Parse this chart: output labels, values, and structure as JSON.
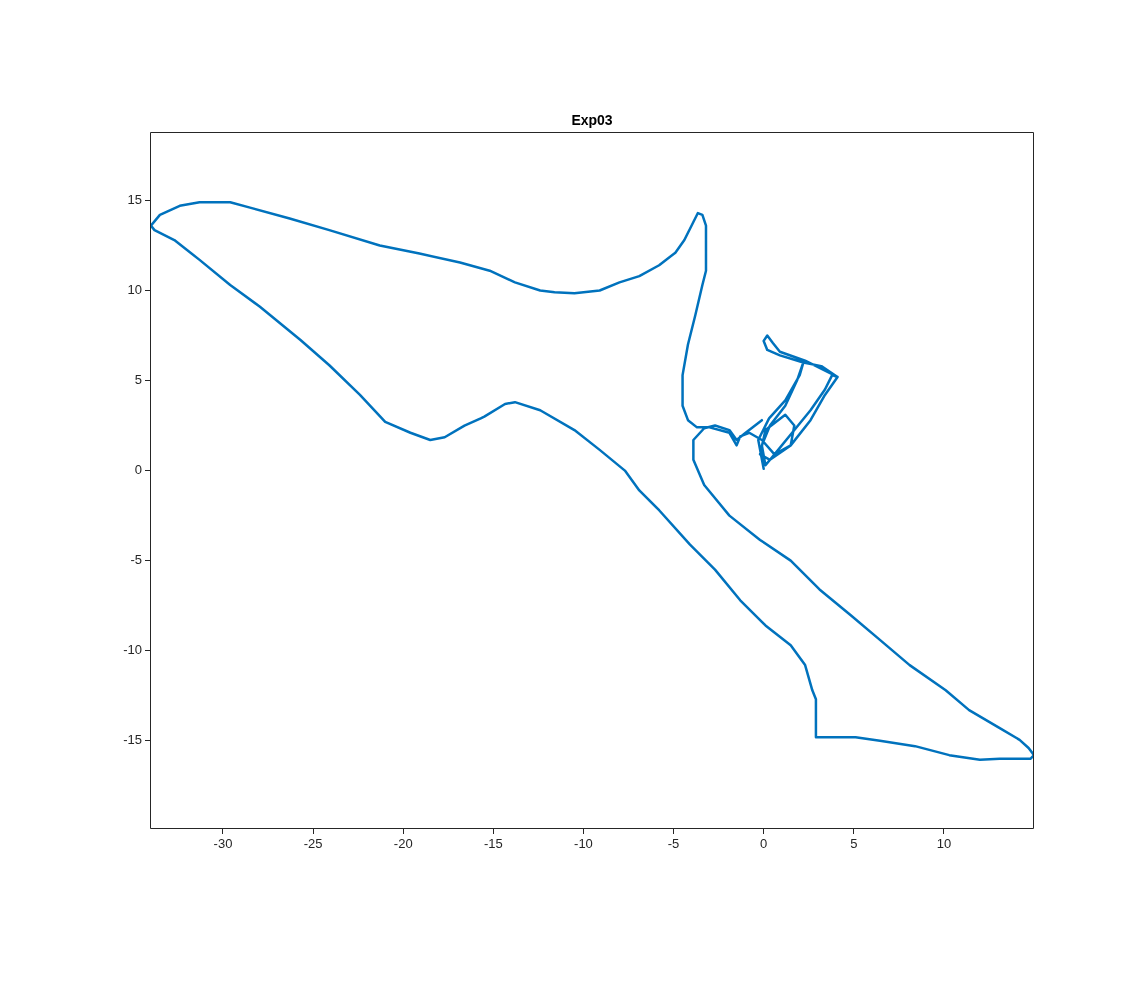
{
  "chart_data": {
    "type": "line",
    "title": "Exp03",
    "xlim": [
      -34.05,
      15
    ],
    "ylim": [
      -19.9,
      18.8
    ],
    "xticks": [
      -30,
      -25,
      -20,
      -15,
      -10,
      -5,
      0,
      5,
      10
    ],
    "yticks": [
      -15,
      -10,
      -5,
      0,
      5,
      10,
      15
    ],
    "grid": false,
    "legend": false,
    "marker": "none",
    "line_style": "solid",
    "series": [
      {
        "color": "#0072bd",
        "x": [
          0.0,
          -0.3,
          0.3,
          1.2,
          2.0,
          2.2,
          1.85,
          1.2,
          0.35,
          -0.1,
          0.1,
          0.6,
          1.5,
          2.6,
          3.4,
          3.8,
          4.1,
          3.2,
          2.2,
          0.9,
          0.2,
          0.0,
          0.2,
          0.5,
          0.9,
          2.3,
          4.1,
          3.4,
          2.6,
          1.5,
          0.35,
          -0.2,
          0.1,
          1.2,
          1.7,
          1.5,
          0.6,
          -0.1,
          -0.8,
          -1.3,
          -1.5,
          -1.9,
          -3.0,
          -3.7,
          -4.2,
          -4.5,
          -4.5,
          -4.2,
          -3.8,
          -3.4,
          -3.2,
          -3.2,
          -3.4,
          -3.65,
          -3.9,
          -4.4,
          -4.9,
          -5.8,
          -6.9,
          -8.0,
          -9.1,
          -10.5,
          -11.6,
          -12.4,
          -13.8,
          -15.2,
          -16.85,
          -19.1,
          -21.3,
          -24.1,
          -26.3,
          -28.5,
          -29.6,
          -31.3,
          -32.4,
          -33.5,
          -34.0,
          -33.8,
          -32.7,
          -31.3,
          -29.6,
          -27.95,
          -25.7,
          -24.1,
          -22.4,
          -21.0,
          -19.6,
          -18.5,
          -17.7,
          -16.6,
          -15.7,
          -15.5,
          -14.35,
          -13.8,
          -12.4,
          -10.5,
          -9.1,
          -7.7,
          -6.9,
          -5.8,
          -4.1,
          -2.7,
          -1.3,
          0.1,
          1.5,
          2.3,
          2.7,
          2.9,
          2.9,
          3.2,
          5.1,
          6.45,
          8.4,
          10.3,
          12.0,
          13.1,
          14.8,
          15.0,
          14.7,
          14.2,
          13.1,
          11.4,
          10.1,
          8.1,
          6.45,
          4.8,
          3.1,
          1.5,
          -0.2,
          -1.9,
          -3.3,
          -3.9,
          -3.9,
          -3.3,
          -2.7,
          -1.9,
          -1.5,
          -1.0,
          -0.1
        ],
        "values": [
          0.1,
          1.7,
          2.9,
          3.9,
          5.3,
          6.0,
          5.0,
          3.6,
          2.5,
          1.4,
          0.3,
          0.9,
          2.0,
          3.35,
          4.5,
          5.3,
          5.2,
          5.8,
          6.0,
          6.4,
          6.7,
          7.2,
          7.5,
          7.1,
          6.6,
          6.1,
          5.2,
          4.2,
          2.8,
          1.4,
          0.6,
          0.9,
          2.25,
          3.1,
          2.5,
          1.4,
          0.9,
          1.7,
          2.1,
          1.9,
          1.4,
          2.1,
          2.4,
          2.4,
          2.8,
          3.6,
          5.3,
          7.0,
          8.6,
          10.3,
          11.1,
          13.6,
          14.2,
          14.3,
          13.8,
          12.8,
          12.1,
          11.4,
          10.8,
          10.45,
          10.0,
          9.85,
          9.9,
          10.0,
          10.45,
          11.1,
          11.55,
          12.05,
          12.5,
          13.35,
          14.0,
          14.6,
          14.9,
          14.9,
          14.7,
          14.2,
          13.6,
          13.35,
          12.8,
          11.7,
          10.3,
          9.1,
          7.25,
          5.85,
          4.2,
          2.7,
          2.1,
          1.7,
          1.85,
          2.5,
          2.9,
          3.0,
          3.7,
          3.8,
          3.35,
          2.25,
          1.15,
          0.0,
          -1.1,
          -2.2,
          -4.1,
          -5.5,
          -7.2,
          -8.6,
          -9.7,
          -10.8,
          -12.2,
          -12.7,
          -14.8,
          -14.8,
          -14.8,
          -15.0,
          -15.3,
          -15.8,
          -16.05,
          -16.0,
          -16.0,
          -15.8,
          -15.4,
          -14.95,
          -14.3,
          -13.3,
          -12.2,
          -10.8,
          -9.4,
          -8.0,
          -6.6,
          -5.0,
          -3.85,
          -2.5,
          -0.8,
          0.6,
          1.7,
          2.35,
          2.5,
          2.25,
          1.7,
          2.1,
          2.8
        ]
      }
    ]
  }
}
